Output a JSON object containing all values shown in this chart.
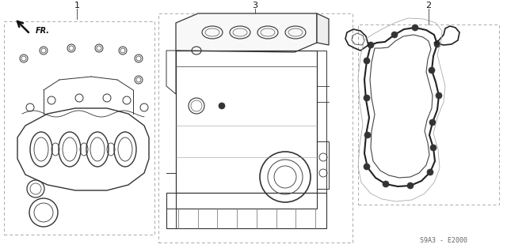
{
  "background_color": "#ffffff",
  "line_color": "#333333",
  "dash_color": "#aaaaaa",
  "label_color": "#111111",
  "diagram_code": "S9A3 - E2000",
  "labels": [
    "1",
    "2",
    "3"
  ],
  "fr_text": "FR."
}
